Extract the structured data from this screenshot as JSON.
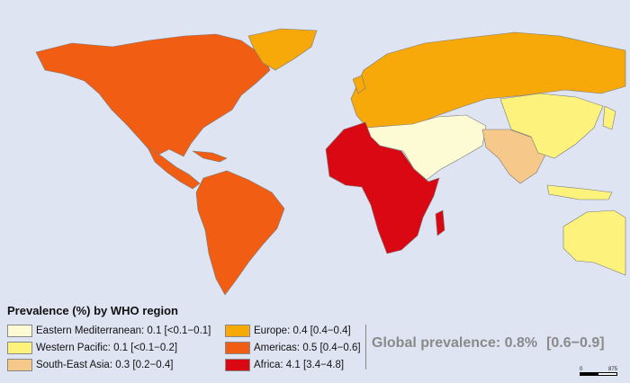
{
  "legend": {
    "title": "Prevalence (%) by WHO region",
    "items": [
      {
        "label": "Eastern Mediterranean: 0.1 [<0.1−0.1]",
        "color": "#fdfbd3"
      },
      {
        "label": "Western Pacific: 0.1 [<0.1−0.2]",
        "color": "#fcf27c"
      },
      {
        "label": "South-East Asia: 0.3 [0.2−0.4]",
        "color": "#f6c98a"
      },
      {
        "label": "Europe: 0.4 [0.4−0.4]",
        "color": "#f7a90a"
      },
      {
        "label": "Americas: 0.5 [0.4−0.6]",
        "color": "#f15d13"
      },
      {
        "label": "Africa: 4.1 [3.4−4.8]",
        "color": "#d90812"
      }
    ]
  },
  "global": {
    "label": "Global prevalence: 0.8%",
    "ci": "[0.6−0.9]"
  },
  "scale": {
    "start": "0",
    "end": "875"
  },
  "colors": {
    "ocean": "#dfe4f2",
    "eastern_mediterranean": "#fdfbd3",
    "western_pacific": "#fcf27c",
    "south_east_asia": "#f6c98a",
    "europe": "#f7a90a",
    "americas": "#f15d13",
    "africa": "#d90812"
  }
}
